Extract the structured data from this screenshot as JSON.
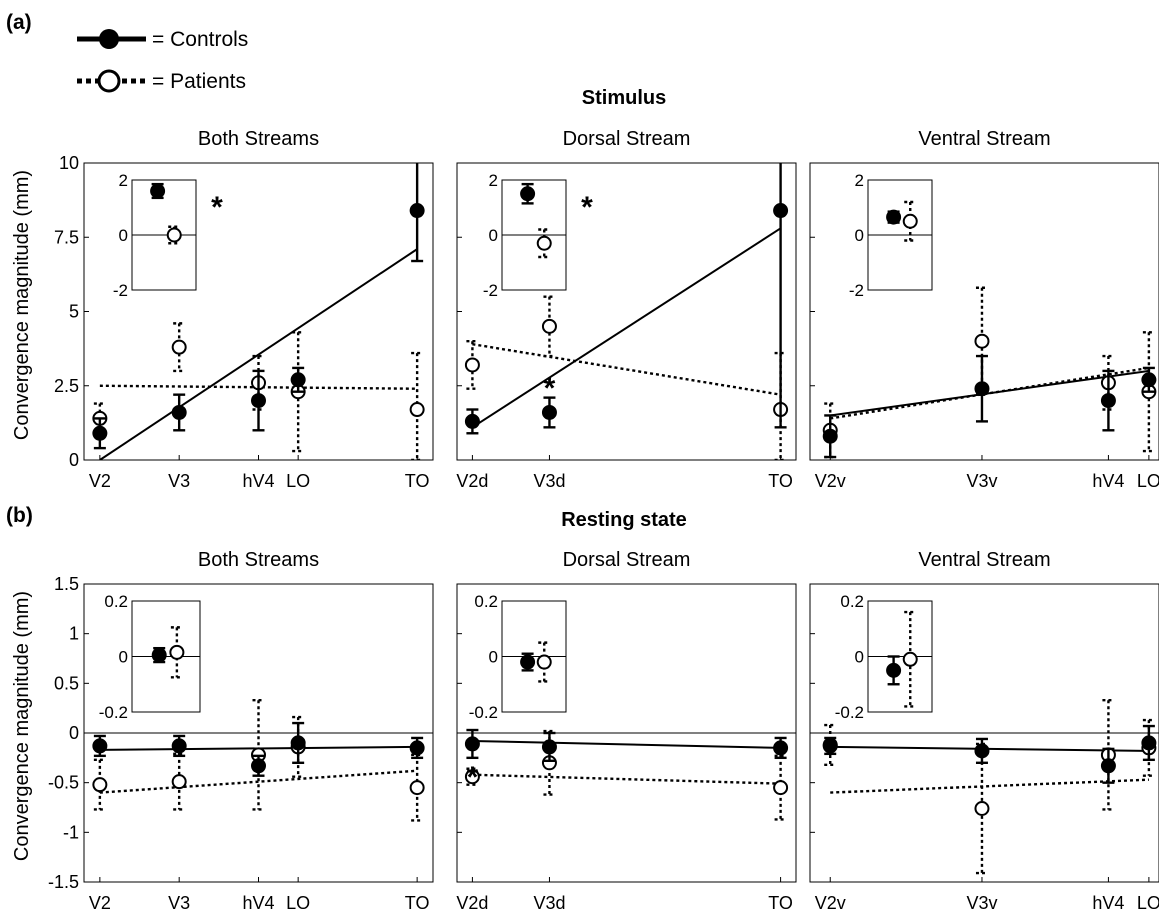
{
  "legend": {
    "controls": "= Controls",
    "patients": "= Patients"
  },
  "figure": {
    "a_letter": "(a)",
    "b_letter": "(b)",
    "a_title": "Stimulus",
    "b_title": "Resting state",
    "ylabel": "Convergence magnitude (mm)"
  },
  "colors": {
    "ink": "#000000",
    "background": "#ffffff"
  },
  "chart_data": [
    {
      "id": "a1",
      "type": "scatter",
      "title": "Both Streams",
      "categories": [
        "V2",
        "V3",
        "hV4",
        "LO",
        "TO"
      ],
      "x": [
        1,
        2,
        3,
        3.5,
        5
      ],
      "xlim": [
        0.8,
        5.2
      ],
      "ylim": [
        0,
        10
      ],
      "yticks": [
        0,
        2.5,
        5,
        7.5,
        10
      ],
      "yticklabels": [
        "0",
        "2.5",
        "5",
        "7.5",
        "10"
      ],
      "series": [
        {
          "name": "Controls",
          "values": [
            0.9,
            1.6,
            2.0,
            2.7,
            8.4
          ],
          "err_low": [
            0.5,
            0.6,
            1.0,
            0.4,
            1.7
          ],
          "err_high": [
            0.5,
            0.6,
            1.0,
            0.4,
            2.1
          ],
          "fit": [
            0.0,
            7.1
          ]
        },
        {
          "name": "Patients",
          "values": [
            1.4,
            3.8,
            2.6,
            2.3,
            1.7
          ],
          "err_low": [
            0.5,
            0.8,
            0.9,
            2.0,
            1.7
          ],
          "err_high": [
            0.5,
            0.8,
            0.9,
            2.0,
            1.9
          ],
          "fit": [
            2.5,
            2.4
          ]
        }
      ],
      "inset": {
        "ylim": [
          -2,
          2
        ],
        "yticks": [
          -2,
          0,
          2
        ],
        "yticklabels": [
          "-2",
          "0",
          "2"
        ],
        "controls": {
          "value": 1.6,
          "err": 0.25
        },
        "patients": {
          "value": 0.0,
          "err": 0.3
        },
        "asterisk": "*"
      },
      "annotations": []
    },
    {
      "id": "a2",
      "type": "scatter",
      "title": "Dorsal Stream",
      "categories": [
        "V2d",
        "V3d",
        "TO"
      ],
      "x": [
        1,
        2,
        5
      ],
      "xlim": [
        0.8,
        5.2
      ],
      "ylim": [
        0,
        10
      ],
      "yticks": [
        0,
        2.5,
        5,
        7.5,
        10
      ],
      "yticklabels": [],
      "series": [
        {
          "name": "Controls",
          "values": [
            1.3,
            1.6,
            8.4
          ],
          "err_low": [
            0.4,
            0.5,
            7.3
          ],
          "err_high": [
            0.4,
            0.5,
            1.7
          ],
          "fit": [
            1.1,
            7.8
          ]
        },
        {
          "name": "Patients",
          "values": [
            3.2,
            4.5,
            1.7
          ],
          "err_low": [
            0.8,
            1.0,
            1.7
          ],
          "err_high": [
            0.8,
            1.0,
            1.9
          ],
          "fit": [
            3.9,
            2.2
          ]
        }
      ],
      "inset": {
        "ylim": [
          -2,
          2
        ],
        "yticks": [
          -2,
          0,
          2
        ],
        "yticklabels": [
          "-2",
          "0",
          "2"
        ],
        "controls": {
          "value": 1.5,
          "err": 0.35
        },
        "patients": {
          "value": -0.3,
          "err": 0.5
        },
        "asterisk": "*"
      },
      "annotations": [
        {
          "text": "*",
          "x": 2,
          "y": 2.7
        }
      ]
    },
    {
      "id": "a3",
      "type": "scatter",
      "title": "Ventral Stream",
      "categories": [
        "V2v",
        "V3v",
        "hV4",
        "LO"
      ],
      "x": [
        1,
        2.5,
        3.75,
        4.15
      ],
      "xlim": [
        0.8,
        4.25
      ],
      "ylim": [
        0,
        10
      ],
      "yticks": [
        0,
        2.5,
        5,
        7.5,
        10
      ],
      "yticklabels": [],
      "series": [
        {
          "name": "Controls",
          "values": [
            0.8,
            2.4,
            2.0,
            2.7
          ],
          "err_low": [
            0.7,
            1.1,
            1.0,
            0.4
          ],
          "err_high": [
            0.7,
            1.1,
            1.0,
            0.4
          ],
          "fit": [
            1.5,
            3.0
          ]
        },
        {
          "name": "Patients",
          "values": [
            1.0,
            4.0,
            2.6,
            2.3
          ],
          "err_low": [
            0.9,
            1.8,
            0.9,
            2.0
          ],
          "err_high": [
            0.9,
            1.8,
            0.9,
            2.0
          ],
          "fit": [
            1.4,
            3.1
          ]
        }
      ],
      "inset": {
        "ylim": [
          -2,
          2
        ],
        "yticks": [
          -2,
          0,
          2
        ],
        "yticklabels": [
          "-2",
          "0",
          "2"
        ],
        "controls": {
          "value": 0.65,
          "err": 0.2
        },
        "patients": {
          "value": 0.5,
          "err": 0.7
        },
        "asterisk": ""
      },
      "annotations": []
    },
    {
      "id": "b1",
      "type": "scatter",
      "title": "Both Streams",
      "categories": [
        "V2",
        "V3",
        "hV4",
        "LO",
        "TO"
      ],
      "x": [
        1,
        2,
        3,
        3.5,
        5
      ],
      "xlim": [
        0.8,
        5.2
      ],
      "ylim": [
        -1.5,
        1.5
      ],
      "yticks": [
        -1.5,
        -1,
        -0.5,
        0,
        0.5,
        1,
        1.5
      ],
      "yticklabels": [
        "-1.5",
        "-1",
        "-0.5",
        "0",
        "0.5",
        "1",
        "1.5"
      ],
      "series": [
        {
          "name": "Controls",
          "values": [
            -0.13,
            -0.13,
            -0.33,
            -0.1,
            -0.15
          ],
          "err_low": [
            0.1,
            0.1,
            0.1,
            0.2,
            0.1
          ],
          "err_high": [
            0.1,
            0.1,
            0.1,
            0.2,
            0.1
          ],
          "fit": [
            -0.17,
            -0.14
          ]
        },
        {
          "name": "Patients",
          "values": [
            -0.52,
            -0.49,
            -0.22,
            -0.14,
            -0.55
          ],
          "err_low": [
            0.25,
            0.28,
            0.55,
            0.3,
            0.33
          ],
          "err_high": [
            0.25,
            0.28,
            0.55,
            0.3,
            0.33
          ],
          "fit": [
            -0.6,
            -0.38
          ]
        }
      ],
      "inset": {
        "ylim": [
          -0.2,
          0.2
        ],
        "yticks": [
          -0.2,
          0,
          0.2
        ],
        "yticklabels": [
          "-0.2",
          "0",
          "0.2"
        ],
        "controls": {
          "value": 0.005,
          "err": 0.025
        },
        "patients": {
          "value": 0.015,
          "err": 0.09
        },
        "asterisk": ""
      },
      "annotations": []
    },
    {
      "id": "b2",
      "type": "scatter",
      "title": "Dorsal Stream",
      "categories": [
        "V2d",
        "V3d",
        "TO"
      ],
      "x": [
        1,
        2,
        5
      ],
      "xlim": [
        0.8,
        5.2
      ],
      "ylim": [
        -1.5,
        1.5
      ],
      "yticks": [
        -1.5,
        -1,
        -0.5,
        0,
        0.5,
        1,
        1.5
      ],
      "yticklabels": [],
      "series": [
        {
          "name": "Controls",
          "values": [
            -0.11,
            -0.14,
            -0.15
          ],
          "err_low": [
            0.14,
            0.14,
            0.1
          ],
          "err_high": [
            0.14,
            0.14,
            0.1
          ],
          "fit": [
            -0.08,
            -0.15
          ]
        },
        {
          "name": "Patients",
          "values": [
            -0.44,
            -0.3,
            -0.55
          ],
          "err_low": [
            0.08,
            0.32,
            0.32
          ],
          "err_high": [
            0.08,
            0.32,
            0.32
          ],
          "fit": [
            -0.42,
            -0.51
          ]
        }
      ],
      "inset": {
        "ylim": [
          -0.2,
          0.2
        ],
        "yticks": [
          -0.2,
          0,
          0.2
        ],
        "yticklabels": [
          "-0.2",
          "0",
          "0.2"
        ],
        "controls": {
          "value": -0.02,
          "err": 0.03
        },
        "patients": {
          "value": -0.02,
          "err": 0.07
        },
        "asterisk": ""
      },
      "annotations": [
        {
          "text": "*",
          "x": 1,
          "y": -0.36
        }
      ]
    },
    {
      "id": "b3",
      "type": "scatter",
      "title": "Ventral Stream",
      "categories": [
        "V2v",
        "V3v",
        "hV4",
        "LO"
      ],
      "x": [
        1,
        2.5,
        3.75,
        4.15
      ],
      "xlim": [
        0.8,
        4.25
      ],
      "ylim": [
        -1.5,
        1.5
      ],
      "yticks": [
        -1.5,
        -1,
        -0.5,
        0,
        0.5,
        1,
        1.5
      ],
      "yticklabels": [],
      "series": [
        {
          "name": "Controls",
          "values": [
            -0.13,
            -0.18,
            -0.33,
            -0.1
          ],
          "err_low": [
            0.08,
            0.12,
            0.17,
            0.17
          ],
          "err_high": [
            0.08,
            0.12,
            0.17,
            0.17
          ],
          "fit": [
            -0.14,
            -0.18
          ]
        },
        {
          "name": "Patients",
          "values": [
            -0.12,
            -0.76,
            -0.22,
            -0.15
          ],
          "err_low": [
            0.2,
            0.65,
            0.55,
            0.28
          ],
          "err_high": [
            0.2,
            0.65,
            0.55,
            0.28
          ],
          "fit": [
            -0.6,
            -0.47
          ]
        }
      ],
      "inset": {
        "ylim": [
          -0.2,
          0.2
        ],
        "yticks": [
          -0.2,
          0,
          0.2
        ],
        "yticklabels": [
          "-0.2",
          "0",
          "0.2"
        ],
        "controls": {
          "value": -0.05,
          "err": 0.05
        },
        "patients": {
          "value": -0.01,
          "err": 0.17
        },
        "asterisk": ""
      },
      "annotations": []
    }
  ]
}
